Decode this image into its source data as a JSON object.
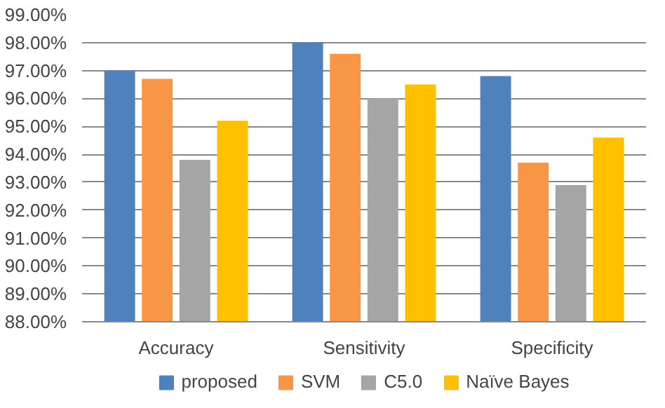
{
  "chart_data": {
    "type": "bar",
    "categories": [
      "Accuracy",
      "Sensitivity",
      "Specificity"
    ],
    "series": [
      {
        "name": "proposed",
        "color": "#4f81bd",
        "values": [
          97.0,
          98.0,
          96.8
        ]
      },
      {
        "name": "SVM",
        "color": "#f79646",
        "values": [
          96.7,
          97.6,
          93.7
        ]
      },
      {
        "name": "C5.0",
        "color": "#a5a5a5",
        "values": [
          93.8,
          96.0,
          92.9
        ]
      },
      {
        "name": "Naïve Bayes",
        "color": "#ffc000",
        "values": [
          95.2,
          96.5,
          94.6
        ]
      }
    ],
    "ylim": [
      88,
      99
    ],
    "yticks": [
      {
        "value": 88,
        "label": "88.00%"
      },
      {
        "value": 89,
        "label": "89.00%"
      },
      {
        "value": 90,
        "label": "90.00%"
      },
      {
        "value": 91,
        "label": "91.00%"
      },
      {
        "value": 92,
        "label": "92.00%"
      },
      {
        "value": 93,
        "label": "93.00%"
      },
      {
        "value": 94,
        "label": "94.00%"
      },
      {
        "value": 95,
        "label": "95.00%"
      },
      {
        "value": 96,
        "label": "96.00%"
      },
      {
        "value": 97,
        "label": "97.00%"
      },
      {
        "value": 98,
        "label": "98.00%"
      },
      {
        "value": 99,
        "label": "99.00%"
      }
    ],
    "grid": "y",
    "legend": "bottom"
  }
}
